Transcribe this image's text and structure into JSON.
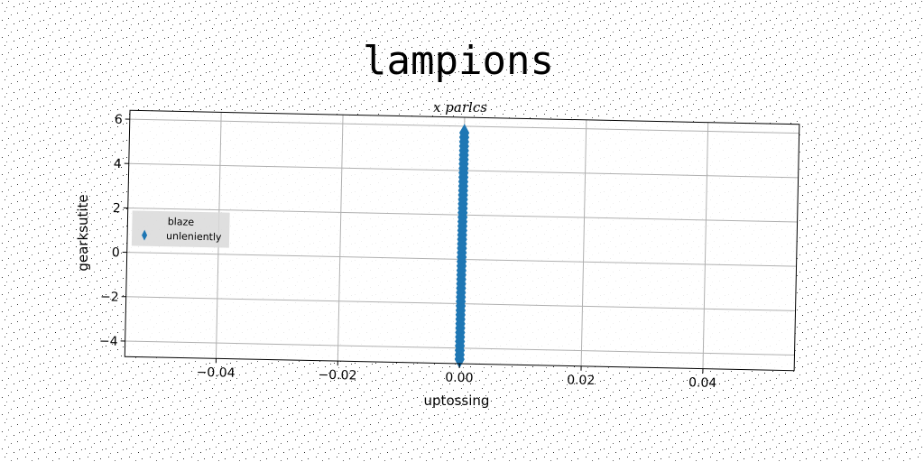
{
  "chart_data": {
    "type": "scatter",
    "title": "lampions",
    "top_label": "x parlcs",
    "xlabel": "uptossing",
    "ylabel": "gearksutite",
    "xlim": [
      -0.055,
      0.055
    ],
    "ylim": [
      -4.7,
      6.4
    ],
    "x_ticks": [
      -0.04,
      -0.02,
      0.0,
      0.02,
      0.04
    ],
    "x_tick_labels": [
      "−0.04",
      "−0.02",
      "0.00",
      "0.02",
      "0.04"
    ],
    "y_ticks": [
      -4,
      -2,
      0,
      2,
      4,
      6
    ],
    "y_tick_labels": [
      "−4",
      "−2",
      "0",
      "2",
      "4",
      "6"
    ],
    "grid": true,
    "legend": {
      "placement": "center-left",
      "title": "blaze",
      "entries": [
        "unleniently"
      ]
    },
    "marker": "thin-diamond",
    "series": [
      {
        "name": "unleniently",
        "color": "#1f77b4",
        "points": [
          [
            0,
            -4.5
          ],
          [
            0,
            -4.3
          ],
          [
            0,
            -4.1
          ],
          [
            0,
            -3.9
          ],
          [
            0,
            -3.7
          ],
          [
            0,
            -3.5
          ],
          [
            0,
            -3.3
          ],
          [
            0,
            -3.1
          ],
          [
            0,
            -2.9
          ],
          [
            0,
            -2.7
          ],
          [
            0,
            -2.5
          ],
          [
            0,
            -2.3
          ],
          [
            0,
            -2.1
          ],
          [
            0,
            -1.9
          ],
          [
            0,
            -1.7
          ],
          [
            0,
            -1.5
          ],
          [
            0,
            -1.3
          ],
          [
            0,
            -1.1
          ],
          [
            0,
            -0.9
          ],
          [
            0,
            -0.7
          ],
          [
            0,
            -0.5
          ],
          [
            0,
            -0.3
          ],
          [
            0,
            -0.1
          ],
          [
            0,
            0.1
          ],
          [
            0,
            0.3
          ],
          [
            0,
            0.5
          ],
          [
            0,
            0.7
          ],
          [
            0,
            0.9
          ],
          [
            0,
            1.1
          ],
          [
            0,
            1.3
          ],
          [
            0,
            1.5
          ],
          [
            0,
            1.7
          ],
          [
            0,
            1.9
          ],
          [
            0,
            2.1
          ],
          [
            0,
            2.3
          ],
          [
            0,
            2.5
          ],
          [
            0,
            2.7
          ],
          [
            0,
            2.9
          ],
          [
            0,
            3.1
          ],
          [
            0,
            3.3
          ],
          [
            0,
            3.5
          ],
          [
            0,
            3.7
          ],
          [
            0,
            3.9
          ],
          [
            0,
            4.1
          ],
          [
            0,
            4.3
          ],
          [
            0,
            4.5
          ],
          [
            0,
            4.7
          ],
          [
            0,
            4.9
          ],
          [
            0,
            5.1
          ],
          [
            0,
            5.3
          ],
          [
            0,
            5.5
          ],
          [
            0,
            5.7
          ]
        ]
      }
    ]
  }
}
